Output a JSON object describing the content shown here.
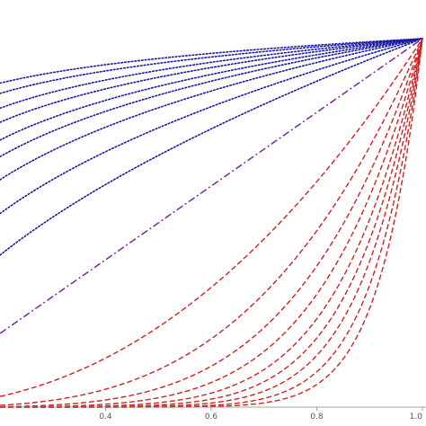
{
  "chart_data": {
    "type": "line",
    "title": "",
    "xlabel": "",
    "ylabel": "",
    "xlim": [
      0.2,
      1.0
    ],
    "ylim": [
      0.0,
      1.0
    ],
    "x_ticks": [
      {
        "value": 0.4,
        "label": "0.4"
      },
      {
        "value": 0.6,
        "label": "0.6"
      },
      {
        "value": 0.8,
        "label": "0.8"
      },
      {
        "value": 1.0,
        "label": "1.0"
      }
    ],
    "grid": false,
    "legend": "none",
    "colors": {
      "concave": "#1a1aa6",
      "convex": "#d42020",
      "linear": "#7a2a9a",
      "axis": "#888888",
      "tick_label": "#555555"
    },
    "series": [
      {
        "kind": "concave",
        "exponent": 0.08
      },
      {
        "kind": "concave",
        "exponent": 0.1
      },
      {
        "kind": "concave",
        "exponent": 0.13
      },
      {
        "kind": "concave",
        "exponent": 0.16
      },
      {
        "kind": "concave",
        "exponent": 0.2
      },
      {
        "kind": "concave",
        "exponent": 0.24
      },
      {
        "kind": "concave",
        "exponent": 0.3
      },
      {
        "kind": "concave",
        "exponent": 0.4
      },
      {
        "kind": "concave",
        "exponent": 0.55
      },
      {
        "kind": "linear",
        "exponent": 1.0
      },
      {
        "kind": "convex",
        "exponent": 2.2
      },
      {
        "kind": "convex",
        "exponent": 3.3
      },
      {
        "kind": "convex",
        "exponent": 4.3
      },
      {
        "kind": "convex",
        "exponent": 5.3
      },
      {
        "kind": "convex",
        "exponent": 6.4
      },
      {
        "kind": "convex",
        "exponent": 7.5
      },
      {
        "kind": "convex",
        "exponent": 8.8
      },
      {
        "kind": "convex",
        "exponent": 10.5
      },
      {
        "kind": "convex",
        "exponent": 12.5
      }
    ]
  }
}
